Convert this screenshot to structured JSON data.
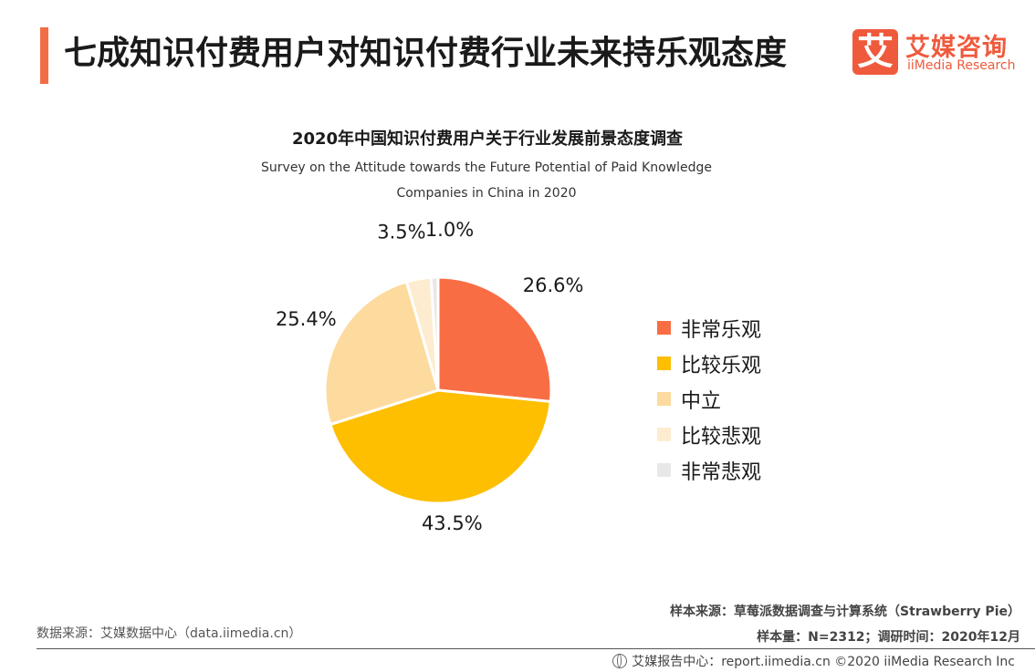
{
  "header": {
    "title": "七成知识付费用户对知识付费行业未来持乐观态度",
    "logo": {
      "mark": "艾",
      "cn": "艾媒咨询",
      "en": "iiMedia Research"
    },
    "accent_color": "#f26d45"
  },
  "chart_data": {
    "type": "pie",
    "title": "2020年中国知识付费用户关于行业发展前景态度调查",
    "subtitle": "Survey on the Attitude towards the Future Potential of Paid Knowledge Companies in China in 2020",
    "categories": [
      "非常乐观",
      "比较乐观",
      "中立",
      "比较悲观",
      "非常悲观"
    ],
    "values": [
      26.6,
      43.5,
      25.4,
      3.5,
      1.0
    ],
    "value_labels": [
      "26.6%",
      "43.5%",
      "25.4%",
      "3.5%",
      "1.0%"
    ],
    "colors": [
      "#f96d45",
      "#fdbf00",
      "#fddb9e",
      "#fdeccf",
      "#e8e8e8"
    ],
    "unit": "%",
    "legend_position": "right",
    "start_angle": "top",
    "direction": "clockwise"
  },
  "notes": {
    "source_left": "数据来源：艾媒数据中心（data.iimedia.cn）",
    "sample_source": "样本来源：草莓派数据调查与计算系统（Strawberry Pie）",
    "sample_size": "样本量：N=2312；调研时间：2020年12月"
  },
  "footer": {
    "icon": "globe-icon",
    "text": "艾媒报告中心：report.iimedia.cn ©2020  iiMedia Research  Inc"
  }
}
